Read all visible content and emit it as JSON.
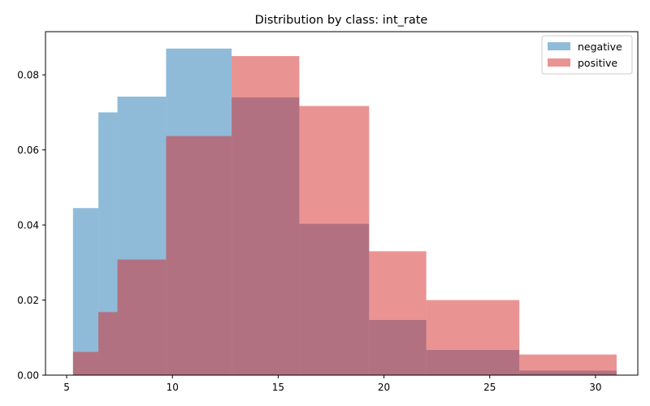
{
  "chart_data": {
    "type": "histogram",
    "title": "Distribution by class: int_rate",
    "xlabel": "",
    "ylabel": "",
    "xlim": [
      4.0,
      32.0
    ],
    "ylim": [
      0.0,
      0.0915
    ],
    "x_ticks": [
      5,
      10,
      15,
      20,
      25,
      30
    ],
    "y_ticks": [
      0.0,
      0.02,
      0.04,
      0.06,
      0.08
    ],
    "y_tick_labels": [
      "0.00",
      "0.02",
      "0.04",
      "0.06",
      "0.08"
    ],
    "grid": false,
    "legend_position": "top-right",
    "series": [
      {
        "name": "negative",
        "color": "#1f77b4",
        "opacity": 0.5,
        "bins": [
          {
            "x0": 5.3,
            "x1": 6.5,
            "value": 0.0445
          },
          {
            "x0": 6.5,
            "x1": 7.4,
            "value": 0.07
          },
          {
            "x0": 7.4,
            "x1": 9.7,
            "value": 0.0742
          },
          {
            "x0": 9.7,
            "x1": 12.8,
            "value": 0.087
          },
          {
            "x0": 12.8,
            "x1": 16.0,
            "value": 0.074
          },
          {
            "x0": 16.0,
            "x1": 19.3,
            "value": 0.0403
          },
          {
            "x0": 19.3,
            "x1": 22.0,
            "value": 0.0147
          },
          {
            "x0": 22.0,
            "x1": 26.4,
            "value": 0.0067
          },
          {
            "x0": 26.4,
            "x1": 31.0,
            "value": 0.0012
          }
        ]
      },
      {
        "name": "positive",
        "color": "#d62728",
        "opacity": 0.5,
        "bins": [
          {
            "x0": 5.3,
            "x1": 6.5,
            "value": 0.0062
          },
          {
            "x0": 6.5,
            "x1": 7.4,
            "value": 0.0168
          },
          {
            "x0": 7.4,
            "x1": 9.7,
            "value": 0.0308
          },
          {
            "x0": 9.7,
            "x1": 12.8,
            "value": 0.0637
          },
          {
            "x0": 12.8,
            "x1": 16.0,
            "value": 0.085
          },
          {
            "x0": 16.0,
            "x1": 19.3,
            "value": 0.0717
          },
          {
            "x0": 19.3,
            "x1": 22.0,
            "value": 0.033
          },
          {
            "x0": 22.0,
            "x1": 26.4,
            "value": 0.02
          },
          {
            "x0": 26.4,
            "x1": 31.0,
            "value": 0.0055
          }
        ]
      }
    ]
  }
}
